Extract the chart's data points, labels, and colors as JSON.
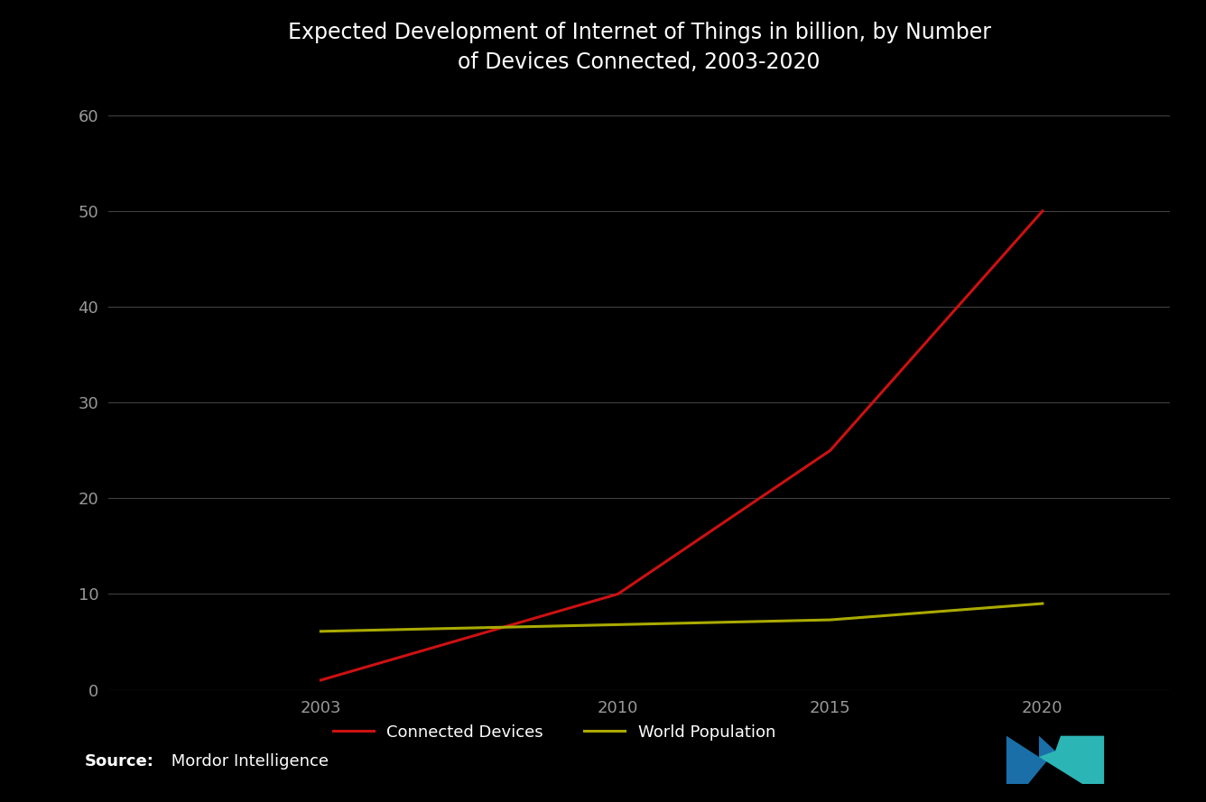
{
  "title": "Expected Development of Internet of Things in billion, by Number\nof Devices Connected, 2003-2020",
  "title_fontsize": 17,
  "background_color": "#000000",
  "plot_bg_color": "#000000",
  "text_color": "#ffffff",
  "tick_color": "#999999",
  "grid_color": "#404040",
  "connected_devices": {
    "x": [
      2003,
      2010,
      2015,
      2020
    ],
    "y": [
      1,
      10,
      25,
      50
    ],
    "color": "#cc1111",
    "label": "Connected Devices",
    "linewidth": 2.2
  },
  "world_population": {
    "x": [
      2003,
      2010,
      2015,
      2020
    ],
    "y": [
      6.1,
      6.8,
      7.3,
      9.0
    ],
    "color": "#aaaa00",
    "label": "World Population",
    "linewidth": 2.2
  },
  "xlim": [
    1998,
    2023
  ],
  "ylim": [
    0,
    62
  ],
  "yticks": [
    0,
    10,
    20,
    30,
    40,
    50,
    60
  ],
  "xticks": [
    2003,
    2010,
    2015,
    2020
  ],
  "source_bold": "Source:",
  "source_text": " Mordor Intelligence",
  "logo_left_color": "#1a6fa8",
  "logo_right_color": "#2cb5b5"
}
